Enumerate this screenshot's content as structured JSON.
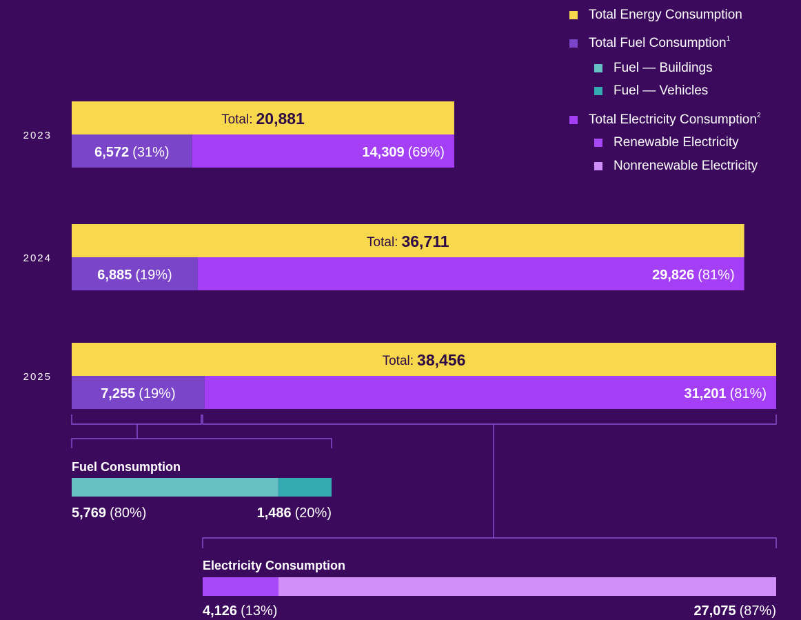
{
  "chart_data": {
    "type": "stacked_bar",
    "legend": [
      {
        "name": "Total Energy Consumption",
        "color": "#f8d84c"
      },
      {
        "name": "Total Fuel Consumption",
        "note": "1",
        "color": "#7a45c8"
      },
      {
        "name": "Fuel — Buildings",
        "color": "#66c1c4",
        "indent": true
      },
      {
        "name": "Fuel — Vehicles",
        "color": "#33a9b0",
        "indent": true
      },
      {
        "name": "Total Electricity Consumption",
        "note": "2",
        "color": "#a43ff5"
      },
      {
        "name": "Renewable Electricity",
        "color": "#a849f7",
        "indent": true
      },
      {
        "name": "Nonrenewable Electricity",
        "color": "#d08ef8",
        "indent": true
      }
    ],
    "total_prefix": "Total:",
    "categories": [
      "2023",
      "2024",
      "2025"
    ],
    "totals": [
      20881,
      36711,
      38456
    ],
    "total_labels": [
      "20,881",
      "36,711",
      "38,456"
    ],
    "total_color": "#f8d84c",
    "series": [
      {
        "color": "#7a45c8",
        "values": [
          6572,
          6885,
          7255
        ],
        "value_labels": [
          "6,572",
          "6,885",
          "7,255"
        ],
        "percents": [
          31,
          19,
          19
        ],
        "percent_labels": [
          "(31%)",
          "(19%)",
          "(19%)"
        ]
      },
      {
        "color": "#a43ff5",
        "values": [
          14309,
          29826,
          31201
        ],
        "value_labels": [
          "14,309",
          "29,826",
          "31,201"
        ],
        "percents": [
          69,
          81,
          81
        ],
        "percent_labels": [
          "(69%)",
          "(81%)",
          "(81%)"
        ]
      }
    ],
    "breakdowns": [
      {
        "title": "Fuel Consumption",
        "values": [
          5769,
          1486
        ],
        "value_labels": [
          "5,769",
          "1,486"
        ],
        "percents": [
          80,
          20
        ],
        "percent_labels": [
          "(80%)",
          "(20%)"
        ],
        "colors": [
          "#66c1c4",
          "#33a9b0"
        ]
      },
      {
        "title": "Electricity Consumption",
        "values": [
          4126,
          27075
        ],
        "value_labels": [
          "4,126",
          "27,075"
        ],
        "percents": [
          13,
          87
        ],
        "percent_labels": [
          "(13%)",
          "(87%)"
        ],
        "colors": [
          "#a849f7",
          "#d08ef8"
        ]
      }
    ]
  }
}
